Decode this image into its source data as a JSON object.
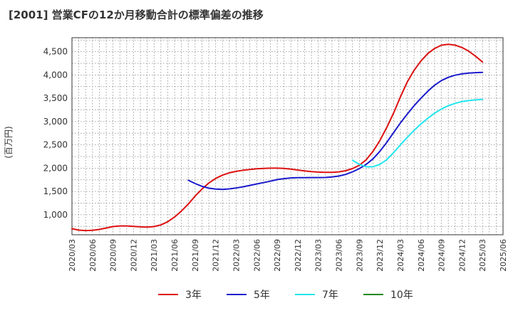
{
  "chart_title": "[2001]  営業CFの12か月移動合計の標準偏差の推移",
  "chart_data": {
    "type": "line",
    "title": "[2001]  営業CFの12か月移動合計の標準偏差の推移",
    "ylabel": "(百万円)",
    "xlabel": "",
    "ylim": [
      570,
      4800
    ],
    "yticks": [
      1000,
      1500,
      2000,
      2500,
      3000,
      3500,
      4000,
      4500
    ],
    "ytick_labels": [
      "1,000",
      "1,500",
      "2,000",
      "2,500",
      "3,000",
      "3,500",
      "4,000",
      "4,500"
    ],
    "x_range": [
      "2020/03",
      "2025/06"
    ],
    "xtick_labels": [
      "2020/03",
      "2020/06",
      "2020/09",
      "2020/12",
      "2021/03",
      "2021/06",
      "2021/09",
      "2021/12",
      "2022/03",
      "2022/06",
      "2022/09",
      "2022/12",
      "2023/03",
      "2023/06",
      "2023/09",
      "2023/12",
      "2024/03",
      "2024/06",
      "2024/09",
      "2024/12",
      "2025/03",
      "2025/06"
    ],
    "grid": true,
    "legend_position": "bottom",
    "series": [
      {
        "name": "3年",
        "color": "#dd1111",
        "points": [
          [
            "2020/03",
            700
          ],
          [
            "2020/04",
            670
          ],
          [
            "2020/05",
            660
          ],
          [
            "2020/06",
            665
          ],
          [
            "2020/07",
            685
          ],
          [
            "2020/08",
            715
          ],
          [
            "2020/09",
            745
          ],
          [
            "2020/10",
            760
          ],
          [
            "2020/11",
            760
          ],
          [
            "2020/12",
            750
          ],
          [
            "2021/01",
            740
          ],
          [
            "2021/02",
            735
          ],
          [
            "2021/03",
            745
          ],
          [
            "2021/04",
            780
          ],
          [
            "2021/05",
            850
          ],
          [
            "2021/06",
            950
          ],
          [
            "2021/07",
            1080
          ],
          [
            "2021/08",
            1230
          ],
          [
            "2021/09",
            1400
          ],
          [
            "2021/10",
            1550
          ],
          [
            "2021/11",
            1680
          ],
          [
            "2021/12",
            1780
          ],
          [
            "2022/01",
            1850
          ],
          [
            "2022/02",
            1900
          ],
          [
            "2022/03",
            1930
          ],
          [
            "2022/04",
            1955
          ],
          [
            "2022/05",
            1970
          ],
          [
            "2022/06",
            1985
          ],
          [
            "2022/07",
            1995
          ],
          [
            "2022/08",
            2000
          ],
          [
            "2022/09",
            2000
          ],
          [
            "2022/10",
            1995
          ],
          [
            "2022/11",
            1980
          ],
          [
            "2022/12",
            1960
          ],
          [
            "2023/01",
            1940
          ],
          [
            "2023/02",
            1925
          ],
          [
            "2023/03",
            1915
          ],
          [
            "2023/04",
            1910
          ],
          [
            "2023/05",
            1910
          ],
          [
            "2023/06",
            1920
          ],
          [
            "2023/07",
            1945
          ],
          [
            "2023/08",
            1990
          ],
          [
            "2023/09",
            2060
          ],
          [
            "2023/10",
            2180
          ],
          [
            "2023/11",
            2360
          ],
          [
            "2023/12",
            2590
          ],
          [
            "2024/01",
            2870
          ],
          [
            "2024/02",
            3180
          ],
          [
            "2024/03",
            3530
          ],
          [
            "2024/04",
            3850
          ],
          [
            "2024/05",
            4100
          ],
          [
            "2024/06",
            4300
          ],
          [
            "2024/07",
            4460
          ],
          [
            "2024/08",
            4570
          ],
          [
            "2024/09",
            4640
          ],
          [
            "2024/10",
            4660
          ],
          [
            "2024/11",
            4640
          ],
          [
            "2024/12",
            4590
          ],
          [
            "2025/01",
            4510
          ],
          [
            "2025/02",
            4400
          ],
          [
            "2025/03",
            4280
          ]
        ]
      },
      {
        "name": "5年",
        "color": "#1a1acc",
        "points": [
          [
            "2021/08",
            1740
          ],
          [
            "2021/09",
            1670
          ],
          [
            "2021/10",
            1610
          ],
          [
            "2021/11",
            1570
          ],
          [
            "2021/12",
            1550
          ],
          [
            "2022/01",
            1545
          ],
          [
            "2022/02",
            1555
          ],
          [
            "2022/03",
            1575
          ],
          [
            "2022/04",
            1600
          ],
          [
            "2022/05",
            1630
          ],
          [
            "2022/06",
            1660
          ],
          [
            "2022/07",
            1690
          ],
          [
            "2022/08",
            1720
          ],
          [
            "2022/09",
            1755
          ],
          [
            "2022/10",
            1775
          ],
          [
            "2022/11",
            1790
          ],
          [
            "2022/12",
            1795
          ],
          [
            "2023/01",
            1797
          ],
          [
            "2023/02",
            1798
          ],
          [
            "2023/03",
            1798
          ],
          [
            "2023/04",
            1800
          ],
          [
            "2023/05",
            1810
          ],
          [
            "2023/06",
            1830
          ],
          [
            "2023/07",
            1865
          ],
          [
            "2023/08",
            1920
          ],
          [
            "2023/09",
            1990
          ],
          [
            "2023/10",
            2080
          ],
          [
            "2023/11",
            2200
          ],
          [
            "2023/12",
            2360
          ],
          [
            "2024/01",
            2550
          ],
          [
            "2024/02",
            2760
          ],
          [
            "2024/03",
            2970
          ],
          [
            "2024/04",
            3160
          ],
          [
            "2024/05",
            3340
          ],
          [
            "2024/06",
            3500
          ],
          [
            "2024/07",
            3650
          ],
          [
            "2024/08",
            3780
          ],
          [
            "2024/09",
            3880
          ],
          [
            "2024/10",
            3950
          ],
          [
            "2024/11",
            3995
          ],
          [
            "2024/12",
            4025
          ],
          [
            "2025/01",
            4040
          ],
          [
            "2025/02",
            4050
          ],
          [
            "2025/03",
            4055
          ]
        ]
      },
      {
        "name": "7年",
        "color": "#22e5ee",
        "points": [
          [
            "2023/08",
            2170
          ],
          [
            "2023/09",
            2080
          ],
          [
            "2023/10",
            2030
          ],
          [
            "2023/11",
            2030
          ],
          [
            "2023/12",
            2080
          ],
          [
            "2024/01",
            2180
          ],
          [
            "2024/02",
            2330
          ],
          [
            "2024/03",
            2500
          ],
          [
            "2024/04",
            2660
          ],
          [
            "2024/05",
            2810
          ],
          [
            "2024/06",
            2950
          ],
          [
            "2024/07",
            3070
          ],
          [
            "2024/08",
            3180
          ],
          [
            "2024/09",
            3270
          ],
          [
            "2024/10",
            3340
          ],
          [
            "2024/11",
            3390
          ],
          [
            "2024/12",
            3430
          ],
          [
            "2025/01",
            3450
          ],
          [
            "2025/02",
            3465
          ],
          [
            "2025/03",
            3475
          ]
        ]
      },
      {
        "name": "10年",
        "color": "#228822",
        "points": []
      }
    ]
  }
}
